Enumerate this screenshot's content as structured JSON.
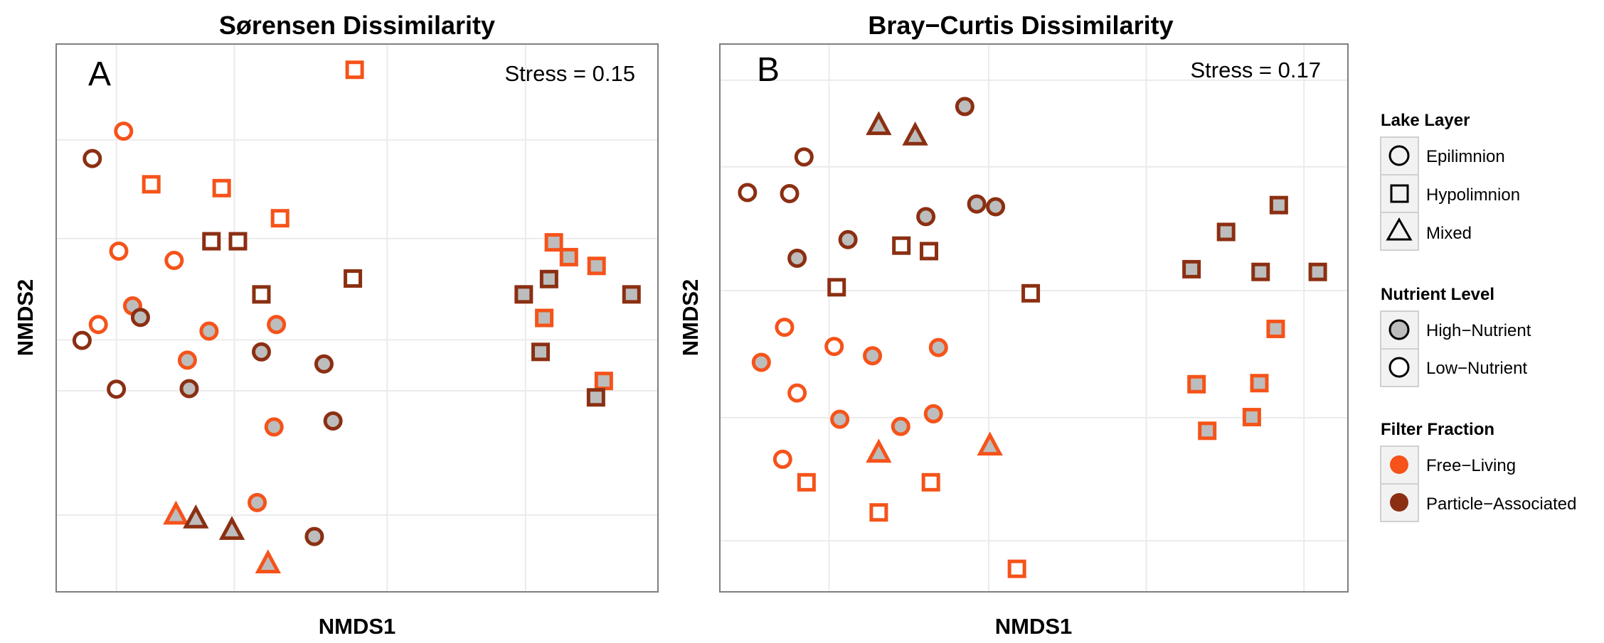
{
  "colors": {
    "free_living": "#F5531A",
    "particle_associated": "#8B2F12",
    "high_nutrient_fill": "#BDBDBD",
    "low_nutrient_fill": "#FFFFFF",
    "panel_border": "#7F7F7F",
    "grid": "#EBEBEB"
  },
  "legend": {
    "lake_layer": {
      "title": "Lake Layer",
      "items": [
        {
          "label": "Epilimnion",
          "shape": "circle"
        },
        {
          "label": "Hypolimnion",
          "shape": "square"
        },
        {
          "label": "Mixed",
          "shape": "triangle"
        }
      ]
    },
    "nutrient_level": {
      "title": "Nutrient Level",
      "items": [
        {
          "label": "High−Nutrient",
          "fill": "#BDBDBD"
        },
        {
          "label": "Low−Nutrient",
          "fill": "#FFFFFF"
        }
      ]
    },
    "filter_fraction": {
      "title": "Filter Fraction",
      "items": [
        {
          "label": "Free−Living",
          "color": "#F5531A"
        },
        {
          "label": "Particle−Associated",
          "color": "#8B2F12"
        }
      ]
    }
  },
  "chart_data": [
    {
      "type": "scatter",
      "panel": "A",
      "title": "Sørensen Dissimilarity",
      "xlabel": "NMDS1",
      "ylabel": "NMDS2",
      "annotation": "Stress = 0.15",
      "xlim": [
        0,
        1000
      ],
      "ylim": [
        0,
        1000
      ],
      "grid": true,
      "points": [
        {
          "x": 496,
          "y": 953,
          "layer": "Hypolimnion",
          "nutrient": "Low",
          "fraction": "Free"
        },
        {
          "x": 112,
          "y": 841,
          "layer": "Epilimnion",
          "nutrient": "Low",
          "fraction": "Free"
        },
        {
          "x": 60,
          "y": 791,
          "layer": "Epilimnion",
          "nutrient": "Low",
          "fraction": "Particle"
        },
        {
          "x": 158,
          "y": 744,
          "layer": "Hypolimnion",
          "nutrient": "Low",
          "fraction": "Free"
        },
        {
          "x": 275,
          "y": 737,
          "layer": "Hypolimnion",
          "nutrient": "Low",
          "fraction": "Free"
        },
        {
          "x": 372,
          "y": 682,
          "layer": "Hypolimnion",
          "nutrient": "Low",
          "fraction": "Free"
        },
        {
          "x": 258,
          "y": 640,
          "layer": "Hypolimnion",
          "nutrient": "Low",
          "fraction": "Particle"
        },
        {
          "x": 302,
          "y": 640,
          "layer": "Hypolimnion",
          "nutrient": "Low",
          "fraction": "Particle"
        },
        {
          "x": 104,
          "y": 622,
          "layer": "Epilimnion",
          "nutrient": "Low",
          "fraction": "Free"
        },
        {
          "x": 196,
          "y": 605,
          "layer": "Epilimnion",
          "nutrient": "Low",
          "fraction": "Free"
        },
        {
          "x": 493,
          "y": 572,
          "layer": "Hypolimnion",
          "nutrient": "Low",
          "fraction": "Particle"
        },
        {
          "x": 341,
          "y": 543,
          "layer": "Hypolimnion",
          "nutrient": "Low",
          "fraction": "Particle"
        },
        {
          "x": 127,
          "y": 522,
          "layer": "Epilimnion",
          "nutrient": "High",
          "fraction": "Free"
        },
        {
          "x": 140,
          "y": 501,
          "layer": "Epilimnion",
          "nutrient": "High",
          "fraction": "Particle"
        },
        {
          "x": 70,
          "y": 488,
          "layer": "Epilimnion",
          "nutrient": "Low",
          "fraction": "Free"
        },
        {
          "x": 43,
          "y": 459,
          "layer": "Epilimnion",
          "nutrient": "Low",
          "fraction": "Particle"
        },
        {
          "x": 254,
          "y": 476,
          "layer": "Epilimnion",
          "nutrient": "High",
          "fraction": "Free"
        },
        {
          "x": 366,
          "y": 488,
          "layer": "Epilimnion",
          "nutrient": "High",
          "fraction": "Free"
        },
        {
          "x": 341,
          "y": 438,
          "layer": "Epilimnion",
          "nutrient": "High",
          "fraction": "Particle"
        },
        {
          "x": 218,
          "y": 423,
          "layer": "Epilimnion",
          "nutrient": "High",
          "fraction": "Free"
        },
        {
          "x": 445,
          "y": 416,
          "layer": "Epilimnion",
          "nutrient": "High",
          "fraction": "Particle"
        },
        {
          "x": 100,
          "y": 370,
          "layer": "Epilimnion",
          "nutrient": "Low",
          "fraction": "Particle"
        },
        {
          "x": 221,
          "y": 371,
          "layer": "Epilimnion",
          "nutrient": "High",
          "fraction": "Particle"
        },
        {
          "x": 362,
          "y": 301,
          "layer": "Epilimnion",
          "nutrient": "High",
          "fraction": "Free"
        },
        {
          "x": 460,
          "y": 312,
          "layer": "Epilimnion",
          "nutrient": "High",
          "fraction": "Particle"
        },
        {
          "x": 334,
          "y": 163,
          "layer": "Epilimnion",
          "nutrient": "High",
          "fraction": "Free"
        },
        {
          "x": 429,
          "y": 101,
          "layer": "Epilimnion",
          "nutrient": "High",
          "fraction": "Particle"
        },
        {
          "x": 199,
          "y": 139,
          "layer": "Mixed",
          "nutrient": "High",
          "fraction": "Free"
        },
        {
          "x": 232,
          "y": 132,
          "layer": "Mixed",
          "nutrient": "High",
          "fraction": "Particle"
        },
        {
          "x": 292,
          "y": 111,
          "layer": "Mixed",
          "nutrient": "High",
          "fraction": "Particle"
        },
        {
          "x": 352,
          "y": 50,
          "layer": "Mixed",
          "nutrient": "High",
          "fraction": "Free"
        },
        {
          "x": 827,
          "y": 638,
          "layer": "Hypolimnion",
          "nutrient": "High",
          "fraction": "Free"
        },
        {
          "x": 852,
          "y": 611,
          "layer": "Hypolimnion",
          "nutrient": "High",
          "fraction": "Free"
        },
        {
          "x": 898,
          "y": 595,
          "layer": "Hypolimnion",
          "nutrient": "High",
          "fraction": "Free"
        },
        {
          "x": 819,
          "y": 571,
          "layer": "Hypolimnion",
          "nutrient": "High",
          "fraction": "Particle"
        },
        {
          "x": 777,
          "y": 543,
          "layer": "Hypolimnion",
          "nutrient": "High",
          "fraction": "Particle"
        },
        {
          "x": 956,
          "y": 543,
          "layer": "Hypolimnion",
          "nutrient": "High",
          "fraction": "Particle"
        },
        {
          "x": 811,
          "y": 500,
          "layer": "Hypolimnion",
          "nutrient": "High",
          "fraction": "Free"
        },
        {
          "x": 805,
          "y": 438,
          "layer": "Hypolimnion",
          "nutrient": "High",
          "fraction": "Particle"
        },
        {
          "x": 910,
          "y": 385,
          "layer": "Hypolimnion",
          "nutrient": "High",
          "fraction": "Free"
        },
        {
          "x": 897,
          "y": 355,
          "layer": "Hypolimnion",
          "nutrient": "High",
          "fraction": "Particle"
        }
      ]
    },
    {
      "type": "scatter",
      "panel": "B",
      "title": "Bray−Curtis Dissimilarity",
      "xlabel": "NMDS1",
      "ylabel": "NMDS2",
      "annotation": "Stress = 0.17",
      "xlim": [
        0,
        1000
      ],
      "ylim": [
        0,
        1000
      ],
      "grid": true,
      "points": [
        {
          "x": 390,
          "y": 886,
          "layer": "Epilimnion",
          "nutrient": "High",
          "fraction": "Particle"
        },
        {
          "x": 253,
          "y": 850,
          "layer": "Mixed",
          "nutrient": "High",
          "fraction": "Particle"
        },
        {
          "x": 311,
          "y": 831,
          "layer": "Mixed",
          "nutrient": "High",
          "fraction": "Particle"
        },
        {
          "x": 134,
          "y": 794,
          "layer": "Epilimnion",
          "nutrient": "Low",
          "fraction": "Particle"
        },
        {
          "x": 44,
          "y": 729,
          "layer": "Epilimnion",
          "nutrient": "Low",
          "fraction": "Particle"
        },
        {
          "x": 111,
          "y": 727,
          "layer": "Epilimnion",
          "nutrient": "Low",
          "fraction": "Particle"
        },
        {
          "x": 409,
          "y": 708,
          "layer": "Epilimnion",
          "nutrient": "High",
          "fraction": "Particle"
        },
        {
          "x": 439,
          "y": 703,
          "layer": "Epilimnion",
          "nutrient": "High",
          "fraction": "Particle"
        },
        {
          "x": 328,
          "y": 685,
          "layer": "Epilimnion",
          "nutrient": "High",
          "fraction": "Particle"
        },
        {
          "x": 204,
          "y": 643,
          "layer": "Epilimnion",
          "nutrient": "High",
          "fraction": "Particle"
        },
        {
          "x": 289,
          "y": 632,
          "layer": "Hypolimnion",
          "nutrient": "Low",
          "fraction": "Particle"
        },
        {
          "x": 333,
          "y": 622,
          "layer": "Hypolimnion",
          "nutrient": "Low",
          "fraction": "Particle"
        },
        {
          "x": 123,
          "y": 609,
          "layer": "Epilimnion",
          "nutrient": "High",
          "fraction": "Particle"
        },
        {
          "x": 186,
          "y": 556,
          "layer": "Hypolimnion",
          "nutrient": "Low",
          "fraction": "Particle"
        },
        {
          "x": 495,
          "y": 545,
          "layer": "Hypolimnion",
          "nutrient": "Low",
          "fraction": "Particle"
        },
        {
          "x": 890,
          "y": 706,
          "layer": "Hypolimnion",
          "nutrient": "High",
          "fraction": "Particle"
        },
        {
          "x": 806,
          "y": 657,
          "layer": "Hypolimnion",
          "nutrient": "High",
          "fraction": "Particle"
        },
        {
          "x": 751,
          "y": 589,
          "layer": "Hypolimnion",
          "nutrient": "High",
          "fraction": "Particle"
        },
        {
          "x": 861,
          "y": 584,
          "layer": "Hypolimnion",
          "nutrient": "High",
          "fraction": "Particle"
        },
        {
          "x": 952,
          "y": 584,
          "layer": "Hypolimnion",
          "nutrient": "High",
          "fraction": "Particle"
        },
        {
          "x": 885,
          "y": 480,
          "layer": "Hypolimnion",
          "nutrient": "High",
          "fraction": "Free"
        },
        {
          "x": 103,
          "y": 483,
          "layer": "Epilimnion",
          "nutrient": "Low",
          "fraction": "Free"
        },
        {
          "x": 182,
          "y": 448,
          "layer": "Epilimnion",
          "nutrient": "Low",
          "fraction": "Free"
        },
        {
          "x": 243,
          "y": 431,
          "layer": "Epilimnion",
          "nutrient": "High",
          "fraction": "Free"
        },
        {
          "x": 348,
          "y": 446,
          "layer": "Epilimnion",
          "nutrient": "High",
          "fraction": "Free"
        },
        {
          "x": 66,
          "y": 419,
          "layer": "Epilimnion",
          "nutrient": "High",
          "fraction": "Free"
        },
        {
          "x": 123,
          "y": 363,
          "layer": "Epilimnion",
          "nutrient": "Low",
          "fraction": "Free"
        },
        {
          "x": 191,
          "y": 315,
          "layer": "Epilimnion",
          "nutrient": "High",
          "fraction": "Free"
        },
        {
          "x": 340,
          "y": 325,
          "layer": "Epilimnion",
          "nutrient": "High",
          "fraction": "Free"
        },
        {
          "x": 288,
          "y": 302,
          "layer": "Epilimnion",
          "nutrient": "High",
          "fraction": "Free"
        },
        {
          "x": 100,
          "y": 242,
          "layer": "Epilimnion",
          "nutrient": "Low",
          "fraction": "Free"
        },
        {
          "x": 759,
          "y": 379,
          "layer": "Hypolimnion",
          "nutrient": "High",
          "fraction": "Free"
        },
        {
          "x": 859,
          "y": 381,
          "layer": "Hypolimnion",
          "nutrient": "High",
          "fraction": "Free"
        },
        {
          "x": 776,
          "y": 294,
          "layer": "Hypolimnion",
          "nutrient": "High",
          "fraction": "Free"
        },
        {
          "x": 847,
          "y": 319,
          "layer": "Hypolimnion",
          "nutrient": "High",
          "fraction": "Free"
        },
        {
          "x": 253,
          "y": 252,
          "layer": "Mixed",
          "nutrient": "High",
          "fraction": "Free"
        },
        {
          "x": 430,
          "y": 265,
          "layer": "Mixed",
          "nutrient": "High",
          "fraction": "Free"
        },
        {
          "x": 138,
          "y": 200,
          "layer": "Hypolimnion",
          "nutrient": "Low",
          "fraction": "Free"
        },
        {
          "x": 336,
          "y": 200,
          "layer": "Hypolimnion",
          "nutrient": "Low",
          "fraction": "Free"
        },
        {
          "x": 253,
          "y": 145,
          "layer": "Hypolimnion",
          "nutrient": "Low",
          "fraction": "Free"
        },
        {
          "x": 473,
          "y": 42,
          "layer": "Hypolimnion",
          "nutrient": "Low",
          "fraction": "Free"
        }
      ]
    }
  ]
}
